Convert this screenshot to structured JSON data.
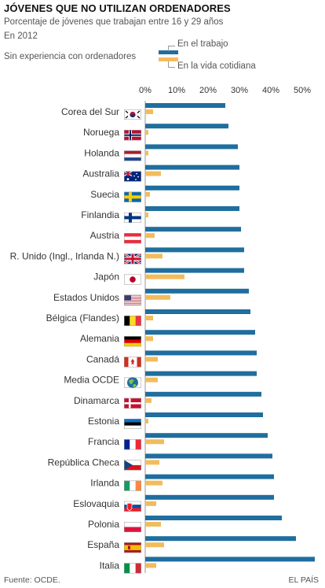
{
  "title": "JÓVENES QUE NO UTILIZAN ORDENADORES",
  "subtitle": "Porcentaje de jóvenes que trabajan entre 16 y 29 años",
  "year": "En 2012",
  "group_label": "Sin experiencia con ordenadores",
  "footer": {
    "source": "Fuente: OCDE.",
    "credit": "EL PAÍS"
  },
  "colors": {
    "work": "#1f6e9e",
    "daily": "#f2bc5c",
    "axis": "#999999",
    "text": "#333333"
  },
  "chart_data": {
    "type": "bar",
    "orientation": "horizontal",
    "x_ticks": [
      "0%",
      "10%",
      "20%",
      "30%",
      "40%",
      "50%"
    ],
    "xlim": [
      0,
      55
    ],
    "categories": [
      "Corea del Sur",
      "Noruega",
      "Holanda",
      "Australia",
      "Suecia",
      "Finlandia",
      "Austria",
      "R. Unido (Ingl., Irlanda N.)",
      "Japón",
      "Estados Unidos",
      "Bélgica (Flandes)",
      "Alemania",
      "Canadá",
      "Media OCDE",
      "Dinamarca",
      "Estonia",
      "Francia",
      "República Checa",
      "Irlanda",
      "Eslovaquia",
      "Polonia",
      "España",
      "Italia"
    ],
    "flags": [
      "kr",
      "no",
      "nl",
      "au",
      "se",
      "fi",
      "at",
      "gb",
      "jp",
      "us",
      "be",
      "de",
      "ca",
      "oecd",
      "dk",
      "ee",
      "fr",
      "cz",
      "ie",
      "sk",
      "pl",
      "es",
      "it"
    ],
    "series": [
      {
        "name": "En el trabajo",
        "values": [
          25.5,
          26.5,
          29.5,
          30,
          30,
          30,
          30.5,
          31.5,
          31.5,
          33,
          33.5,
          35,
          35.5,
          35.5,
          37,
          37.5,
          39,
          40.5,
          41,
          41,
          43.5,
          48,
          54
        ]
      },
      {
        "name": "En la vida cotidiana",
        "values": [
          2.5,
          1,
          1,
          5,
          1.5,
          1,
          3,
          5.5,
          12.5,
          8,
          2.5,
          2.5,
          4,
          4,
          2,
          1,
          6,
          4.5,
          5.5,
          3.5,
          5,
          6,
          3.5
        ]
      }
    ]
  }
}
